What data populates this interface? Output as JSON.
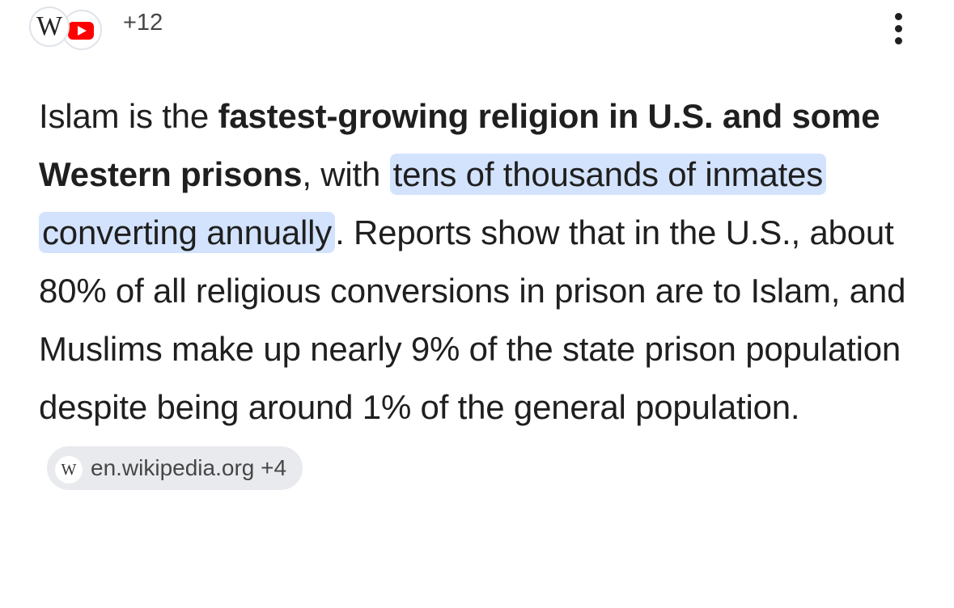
{
  "header": {
    "source_icon_letter": "W",
    "more_sources": "+12"
  },
  "paragraph": [
    {
      "text": "Islam is the ",
      "style": "normal"
    },
    {
      "text": "fastest-growing religion in U.S. and some Western prisons",
      "style": "bold"
    },
    {
      "text": ", with ",
      "style": "normal"
    },
    {
      "text": "tens of thousands of inmates converting annually",
      "style": "highlight"
    },
    {
      "text": ". Reports show that in the U.S., about 80% of all religious conversions in prison are to Islam, and Muslims make up nearly 9% of the state prison population despite being around 1% of the general population.",
      "style": "normal"
    }
  ],
  "citation": {
    "icon_letter": "W",
    "label": "en.wikipedia.org +4"
  }
}
